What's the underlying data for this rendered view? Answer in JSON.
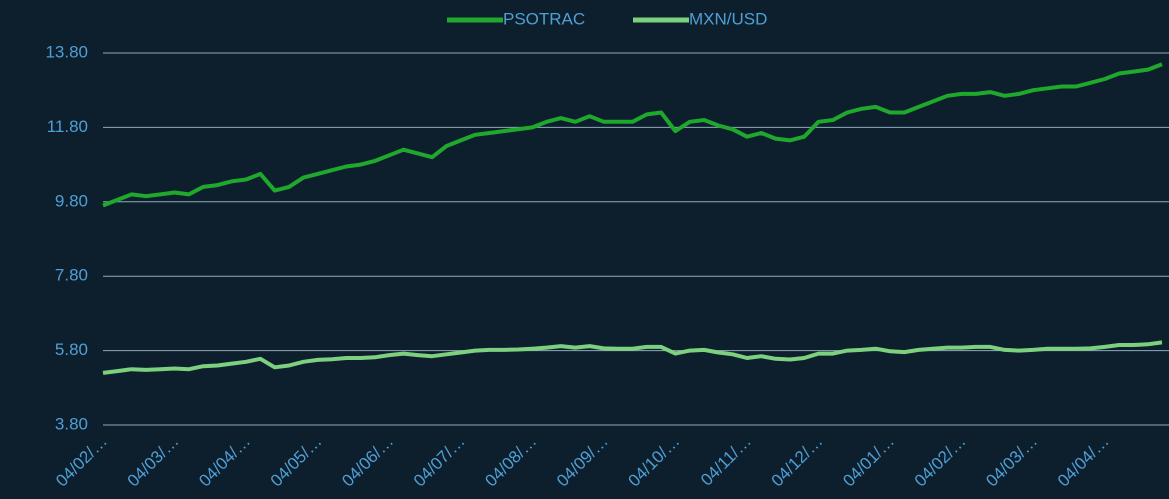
{
  "chart_data": {
    "type": "line",
    "categories": [
      "04/02/…",
      null,
      null,
      null,
      null,
      "04/03/…",
      null,
      null,
      null,
      null,
      "04/04/…",
      null,
      null,
      null,
      null,
      "04/05/…",
      null,
      null,
      null,
      null,
      "04/06/…",
      null,
      null,
      null,
      null,
      "04/07/…",
      null,
      null,
      null,
      null,
      "04/08/…",
      null,
      null,
      null,
      null,
      "04/09/…",
      null,
      null,
      null,
      null,
      "04/10/…",
      null,
      null,
      null,
      null,
      "04/11/…",
      null,
      null,
      null,
      null,
      "04/12/…",
      null,
      null,
      null,
      null,
      "04/01/…",
      null,
      null,
      null,
      null,
      "04/02/…",
      null,
      null,
      null,
      null,
      "04/03/…",
      null,
      null,
      null,
      null,
      "04/04/…",
      null,
      null,
      null,
      null
    ],
    "series": [
      {
        "name": "PSOTRAC",
        "color": "#1fa82c",
        "values": [
          9.7,
          9.85,
          10.0,
          9.95,
          10.0,
          10.05,
          10.0,
          10.2,
          10.25,
          10.35,
          10.4,
          10.55,
          10.1,
          10.2,
          10.45,
          10.55,
          10.65,
          10.75,
          10.8,
          10.9,
          11.05,
          11.2,
          11.1,
          11.0,
          11.3,
          11.45,
          11.6,
          11.65,
          11.7,
          11.75,
          11.8,
          11.95,
          12.05,
          11.95,
          12.1,
          11.95,
          11.95,
          11.95,
          12.15,
          12.2,
          11.7,
          11.95,
          12.0,
          11.85,
          11.75,
          11.55,
          11.65,
          11.5,
          11.45,
          11.55,
          11.95,
          12.0,
          12.2,
          12.3,
          12.35,
          12.2,
          12.2,
          12.35,
          12.5,
          12.65,
          12.7,
          12.7,
          12.75,
          12.65,
          12.7,
          12.8,
          12.85,
          12.9,
          12.9,
          13.0,
          13.1,
          13.25,
          13.3,
          13.35,
          13.5
        ]
      },
      {
        "name": "MXN/USD",
        "color": "#7dd07d",
        "values": [
          5.2,
          5.25,
          5.3,
          5.28,
          5.3,
          5.32,
          5.3,
          5.38,
          5.4,
          5.45,
          5.5,
          5.58,
          5.35,
          5.4,
          5.5,
          5.55,
          5.57,
          5.6,
          5.6,
          5.62,
          5.68,
          5.72,
          5.68,
          5.65,
          5.7,
          5.75,
          5.8,
          5.82,
          5.82,
          5.83,
          5.85,
          5.88,
          5.92,
          5.88,
          5.92,
          5.86,
          5.85,
          5.85,
          5.9,
          5.9,
          5.72,
          5.8,
          5.82,
          5.75,
          5.7,
          5.6,
          5.65,
          5.58,
          5.56,
          5.6,
          5.72,
          5.72,
          5.8,
          5.82,
          5.85,
          5.78,
          5.76,
          5.82,
          5.85,
          5.88,
          5.88,
          5.9,
          5.9,
          5.82,
          5.8,
          5.82,
          5.85,
          5.85,
          5.85,
          5.86,
          5.9,
          5.95,
          5.95,
          5.97,
          6.02
        ]
      }
    ],
    "ylim": [
      3.8,
      13.8
    ],
    "yticks": [
      {
        "value": 3.8,
        "label": "3.80"
      },
      {
        "value": 5.8,
        "label": "5.80"
      },
      {
        "value": 7.8,
        "label": "7.80"
      },
      {
        "value": 9.8,
        "label": "9.80"
      },
      {
        "value": 11.8,
        "label": "11.80"
      },
      {
        "value": 13.8,
        "label": "13.80"
      }
    ],
    "grid": true,
    "legend": "top"
  }
}
